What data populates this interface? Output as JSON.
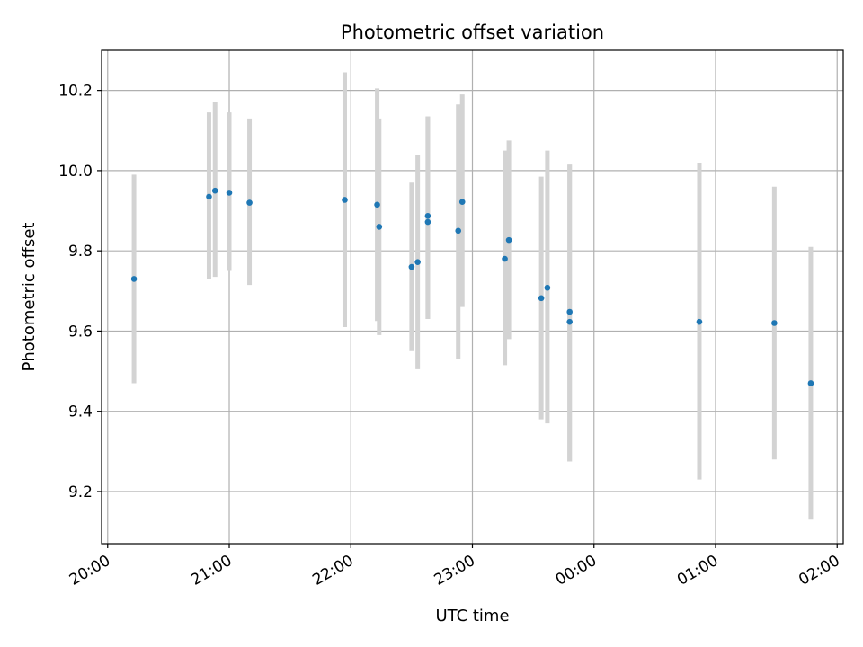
{
  "chart_data": {
    "type": "scatter",
    "title": "Photometric offset variation",
    "xlabel": "UTC time",
    "ylabel": "Photometric offset",
    "x_tick_labels": [
      "20:00",
      "21:00",
      "22:00",
      "23:00",
      "00:00",
      "01:00",
      "02:00"
    ],
    "x_ticks": [
      "2000-01-01T20:00",
      "2000-01-01T21:00",
      "2000-01-01T22:00",
      "2000-01-01T23:00",
      "2000-01-02T00:00",
      "2000-01-02T01:00",
      "2000-01-02T02:00"
    ],
    "xlim": [
      "2000-01-01T19:57",
      "2000-01-02T02:03"
    ],
    "y_ticks": [
      9.2,
      9.4,
      9.6,
      9.8,
      10.0,
      10.2
    ],
    "ylim": [
      9.07,
      10.3
    ],
    "grid": true,
    "colors": {
      "points": "#1f77b4",
      "error_bars": "#d3d3d3",
      "grid": "#b0b0b0"
    },
    "series": [
      {
        "points": [
          {
            "x": "2000-01-01T20:13",
            "y": 9.73,
            "low": 9.47,
            "high": 9.99
          },
          {
            "x": "2000-01-01T20:50",
            "y": 9.935,
            "low": 9.73,
            "high": 10.145
          },
          {
            "x": "2000-01-01T20:53",
            "y": 9.95,
            "low": 9.735,
            "high": 10.17
          },
          {
            "x": "2000-01-01T21:00",
            "y": 9.945,
            "low": 9.75,
            "high": 10.145
          },
          {
            "x": "2000-01-01T21:10",
            "y": 9.92,
            "low": 9.715,
            "high": 10.13
          },
          {
            "x": "2000-01-01T21:57",
            "y": 9.927,
            "low": 9.61,
            "high": 10.245
          },
          {
            "x": "2000-01-01T22:13",
            "y": 9.915,
            "low": 9.625,
            "high": 10.205
          },
          {
            "x": "2000-01-01T22:14",
            "y": 9.86,
            "low": 9.59,
            "high": 10.13
          },
          {
            "x": "2000-01-01T22:30",
            "y": 9.76,
            "low": 9.55,
            "high": 9.97
          },
          {
            "x": "2000-01-01T22:33",
            "y": 9.772,
            "low": 9.505,
            "high": 10.04
          },
          {
            "x": "2000-01-01T22:38",
            "y": 9.872,
            "low": 9.63,
            "high": 10.135
          },
          {
            "x": "2000-01-01T22:38",
            "y": 9.887,
            "low": 9.63,
            "high": 10.135
          },
          {
            "x": "2000-01-01T22:53",
            "y": 9.85,
            "low": 9.53,
            "high": 10.165
          },
          {
            "x": "2000-01-01T22:55",
            "y": 9.922,
            "low": 9.66,
            "high": 10.19
          },
          {
            "x": "2000-01-01T23:16",
            "y": 9.78,
            "low": 9.515,
            "high": 10.05
          },
          {
            "x": "2000-01-01T23:18",
            "y": 9.827,
            "low": 9.58,
            "high": 10.075
          },
          {
            "x": "2000-01-01T23:34",
            "y": 9.682,
            "low": 9.38,
            "high": 9.985
          },
          {
            "x": "2000-01-01T23:37",
            "y": 9.708,
            "low": 9.37,
            "high": 10.05
          },
          {
            "x": "2000-01-01T23:48",
            "y": 9.648,
            "low": 9.275,
            "high": 10.015
          },
          {
            "x": "2000-01-01T23:48",
            "y": 9.623,
            "low": 9.275,
            "high": 10.015
          },
          {
            "x": "2000-01-02T00:52",
            "y": 9.623,
            "low": 9.23,
            "high": 10.02
          },
          {
            "x": "2000-01-02T01:29",
            "y": 9.62,
            "low": 9.28,
            "high": 9.96
          },
          {
            "x": "2000-01-02T01:47",
            "y": 9.47,
            "low": 9.13,
            "high": 9.81
          }
        ]
      }
    ]
  }
}
